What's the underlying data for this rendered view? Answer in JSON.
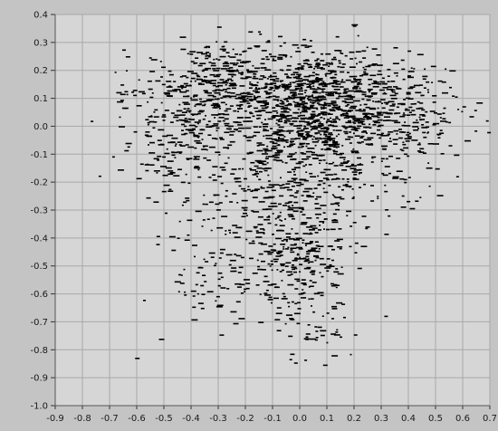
{
  "chart_data": {
    "type": "scatter",
    "title": "",
    "xlabel": "",
    "ylabel": "",
    "xlim": [
      -0.9,
      0.7
    ],
    "ylim": [
      -1.0,
      0.4
    ],
    "x_ticks": [
      "-0.9",
      "-0.8",
      "-0.7",
      "-0.6",
      "-0.5",
      "-0.4",
      "-0.3",
      "-0.2",
      "-0.1",
      "0.0",
      "0.1",
      "0.2",
      "0.3",
      "0.4",
      "0.5",
      "0.6",
      "0.7"
    ],
    "y_ticks": [
      "0.4",
      "0.3",
      "0.2",
      "0.1",
      "0.0",
      "-0.1",
      "-0.2",
      "-0.3",
      "-0.4",
      "-0.5",
      "-0.6",
      "-0.7",
      "-0.8",
      "-0.9",
      "-1.0"
    ],
    "grid": true,
    "marker_color": "#000000",
    "plot_background": "#d6d6d6",
    "grid_color": "#a8a8a8",
    "frame_color": "#c4c4c4",
    "point_count_estimate": 2400,
    "clusters": [
      {
        "name": "core",
        "center": [
          0.05,
          0.06
        ],
        "spread": [
          0.15,
          0.11
        ],
        "weight": 0.42
      },
      {
        "name": "upper-left lobe",
        "center": [
          -0.3,
          0.14
        ],
        "spread": [
          0.14,
          0.08
        ],
        "weight": 0.14
      },
      {
        "name": "left wing",
        "center": [
          -0.45,
          0.0
        ],
        "spread": [
          0.12,
          0.1
        ],
        "weight": 0.07
      },
      {
        "name": "right lobe",
        "center": [
          0.4,
          0.04
        ],
        "spread": [
          0.1,
          0.09
        ],
        "weight": 0.08
      },
      {
        "name": "middle band",
        "center": [
          -0.05,
          -0.22
        ],
        "spread": [
          0.22,
          0.1
        ],
        "weight": 0.13
      },
      {
        "name": "lower tail",
        "center": [
          0.0,
          -0.45
        ],
        "spread": [
          0.1,
          0.1
        ],
        "weight": 0.1
      },
      {
        "name": "lower-left scatter",
        "center": [
          -0.28,
          -0.55
        ],
        "spread": [
          0.14,
          0.1
        ],
        "weight": 0.04
      },
      {
        "name": "bottom sparse",
        "center": [
          0.05,
          -0.72
        ],
        "spread": [
          0.08,
          0.08
        ],
        "weight": 0.02
      }
    ]
  }
}
